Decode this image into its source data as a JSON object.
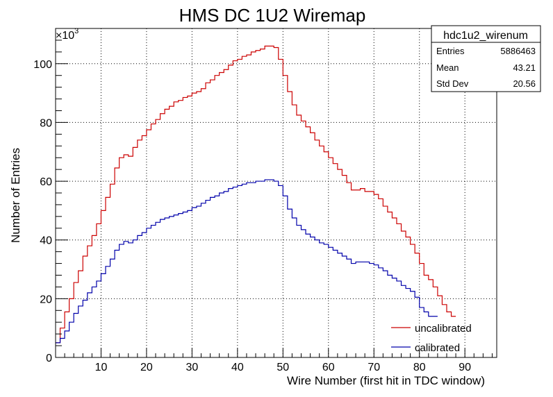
{
  "chart_data": {
    "type": "line",
    "title": "HMS DC 1U2 Wiremap",
    "xlabel": "Wire Number (first hit in TDC window)",
    "ylabel": "Number of Entries",
    "y_multiplier": "×10",
    "y_exponent": "3",
    "xlim": [
      0,
      97
    ],
    "ylim": [
      0,
      112
    ],
    "xticks": [
      10,
      20,
      30,
      40,
      50,
      60,
      70,
      80,
      90
    ],
    "yticks": [
      0,
      20,
      40,
      60,
      80,
      100
    ],
    "xtick_labels": [
      "10",
      "20",
      "30",
      "40",
      "50",
      "60",
      "70",
      "80",
      "90"
    ],
    "ytick_labels": [
      "0",
      "20",
      "40",
      "60",
      "80",
      "100"
    ],
    "grid": true,
    "legend_position": "bottom-right",
    "colors": {
      "uncalibrated": "#cc0000",
      "calibrated": "#0000aa"
    },
    "series": [
      {
        "name": "uncalibrated",
        "x_start": 0,
        "bin_width": 1,
        "values": [
          5,
          10,
          15.5,
          20,
          25.5,
          29.5,
          34.5,
          38,
          41.5,
          45.5,
          50,
          54.5,
          59,
          64.5,
          68,
          69,
          68.5,
          71.5,
          74,
          75.5,
          77.5,
          79.5,
          81,
          83,
          84.5,
          85.5,
          87,
          87.5,
          88.5,
          89,
          90,
          90.5,
          91.5,
          93.5,
          94.5,
          96,
          97,
          98,
          99.5,
          101,
          101.5,
          102.5,
          103,
          104,
          104.5,
          105,
          106,
          106,
          105.5,
          101.5,
          96,
          90.5,
          86,
          82.5,
          80.5,
          78.5,
          76.5,
          74,
          72,
          70,
          68,
          66,
          64,
          62,
          59.5,
          57,
          57,
          57.5,
          56.5,
          56.5,
          55.5,
          54,
          51.5,
          49.5,
          47.5,
          45.5,
          43,
          41,
          38.5,
          35.5,
          32,
          28,
          26.5,
          24,
          21,
          18,
          15.5,
          14
        ]
      },
      {
        "name": "calibrated",
        "x_start": 0,
        "bin_width": 1,
        "values": [
          5,
          6.5,
          9,
          12,
          15,
          17.5,
          19.5,
          22,
          24,
          26,
          28.5,
          31,
          33.5,
          36.5,
          38.5,
          39.5,
          39,
          40,
          41.5,
          42.5,
          44,
          45,
          46,
          47,
          47.5,
          48,
          48.5,
          49,
          49.5,
          50,
          51,
          51.5,
          52.5,
          53.5,
          54.5,
          55,
          56,
          56.5,
          57.5,
          58,
          58.5,
          59,
          59.5,
          59.5,
          60,
          60,
          60.5,
          60.5,
          60,
          58.5,
          55,
          50.5,
          47.5,
          45,
          43.5,
          42,
          41,
          40,
          39,
          38.5,
          37.5,
          36.5,
          35.5,
          34.5,
          33.5,
          32,
          32.5,
          32.5,
          32.5,
          32,
          31.5,
          30.5,
          29.5,
          28,
          27,
          26,
          24.5,
          23.5,
          22.5,
          20.5,
          17,
          15.5,
          14,
          14
        ]
      }
    ],
    "stats_box": {
      "title": "hdc1u2_wirenum",
      "rows": [
        {
          "label": "Entries",
          "value": "5886463"
        },
        {
          "label": "Mean",
          "value": "43.21"
        },
        {
          "label": "Std Dev",
          "value": "20.56"
        }
      ]
    },
    "legend": [
      {
        "label": "uncalibrated",
        "series": "uncalibrated"
      },
      {
        "label": "calibrated",
        "series": "calibrated"
      }
    ]
  }
}
